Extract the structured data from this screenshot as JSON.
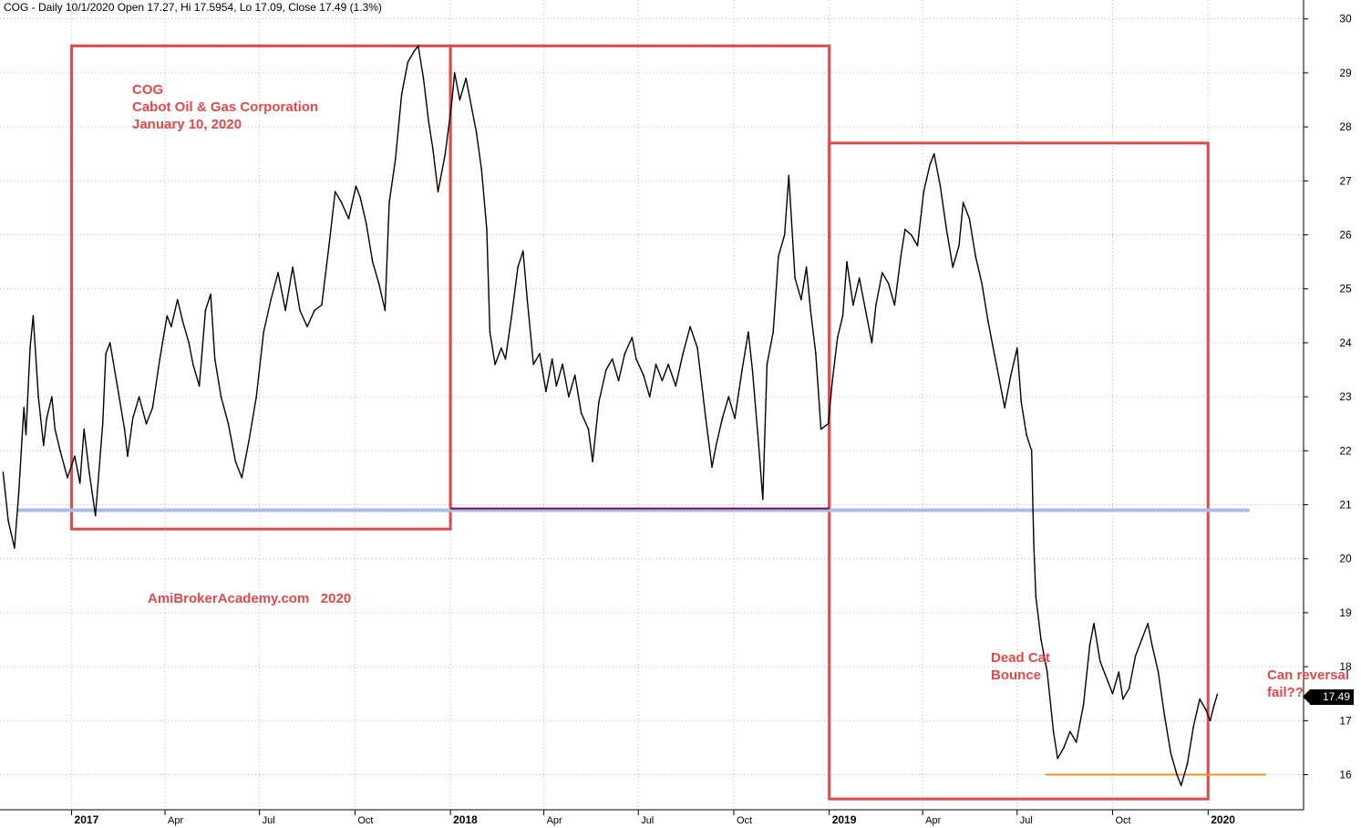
{
  "header": {
    "text": "COG - Daily 10/1/2020 Open 17.27, Hi 17.5954, Lo 17.09, Close 17.49 (1.3%)"
  },
  "annotations": {
    "ticker": "COG",
    "company": "Cabot Oil & Gas Corporation",
    "date": "January 10, 2020",
    "watermark": "AmiBrokerAcademy.com   2020",
    "dead_cat_1": "Dead Cat",
    "dead_cat_2": "Bounce",
    "reversal_1": "Can reversal",
    "reversal_2": "fail??"
  },
  "last_price_label": "17.49",
  "colors": {
    "box": "#e04a4a",
    "support": "#aabde6",
    "support_mid": "#7a0a4a",
    "floor": "#f0922a",
    "price": "#000000",
    "grid": "#b8b8b8"
  },
  "chart_data": {
    "type": "line",
    "series": [
      {
        "values": [
          [
            "2016-10-27",
            21.6
          ],
          [
            "2016-11-01",
            20.7
          ],
          [
            "2016-11-07",
            20.2
          ],
          [
            "2016-11-11",
            21.2
          ],
          [
            "2016-11-16",
            22.8
          ],
          [
            "2016-11-18",
            22.3
          ],
          [
            "2016-11-22",
            23.9
          ],
          [
            "2016-11-25",
            24.5
          ],
          [
            "2016-11-30",
            23.0
          ],
          [
            "2016-12-05",
            22.1
          ],
          [
            "2016-12-08",
            22.6
          ],
          [
            "2016-12-13",
            23.0
          ],
          [
            "2016-12-16",
            22.4
          ],
          [
            "2016-12-21",
            22.0
          ],
          [
            "2016-12-28",
            21.5
          ],
          [
            "2017-01-04",
            21.9
          ],
          [
            "2017-01-09",
            21.4
          ],
          [
            "2017-01-13",
            22.4
          ],
          [
            "2017-01-18",
            21.6
          ],
          [
            "2017-01-24",
            20.8
          ],
          [
            "2017-01-31",
            22.5
          ],
          [
            "2017-02-03",
            23.8
          ],
          [
            "2017-02-07",
            24.0
          ],
          [
            "2017-02-14",
            23.2
          ],
          [
            "2017-02-21",
            22.4
          ],
          [
            "2017-02-24",
            21.9
          ],
          [
            "2017-03-01",
            22.6
          ],
          [
            "2017-03-07",
            23.0
          ],
          [
            "2017-03-14",
            22.5
          ],
          [
            "2017-03-20",
            22.8
          ],
          [
            "2017-03-27",
            23.7
          ],
          [
            "2017-04-03",
            24.5
          ],
          [
            "2017-04-07",
            24.3
          ],
          [
            "2017-04-13",
            24.8
          ],
          [
            "2017-04-18",
            24.4
          ],
          [
            "2017-04-24",
            24.0
          ],
          [
            "2017-04-28",
            23.6
          ],
          [
            "2017-05-04",
            23.2
          ],
          [
            "2017-05-10",
            24.6
          ],
          [
            "2017-05-15",
            24.9
          ],
          [
            "2017-05-19",
            23.7
          ],
          [
            "2017-05-25",
            23.0
          ],
          [
            "2017-06-01",
            22.5
          ],
          [
            "2017-06-08",
            21.8
          ],
          [
            "2017-06-14",
            21.5
          ],
          [
            "2017-06-21",
            22.2
          ],
          [
            "2017-06-28",
            23.0
          ],
          [
            "2017-07-05",
            24.2
          ],
          [
            "2017-07-12",
            24.8
          ],
          [
            "2017-07-19",
            25.3
          ],
          [
            "2017-07-26",
            24.6
          ],
          [
            "2017-08-02",
            25.4
          ],
          [
            "2017-08-09",
            24.6
          ],
          [
            "2017-08-16",
            24.3
          ],
          [
            "2017-08-23",
            24.6
          ],
          [
            "2017-08-30",
            24.7
          ],
          [
            "2017-09-06",
            25.8
          ],
          [
            "2017-09-12",
            26.8
          ],
          [
            "2017-09-18",
            26.6
          ],
          [
            "2017-09-25",
            26.3
          ],
          [
            "2017-10-02",
            26.9
          ],
          [
            "2017-10-06",
            26.7
          ],
          [
            "2017-10-12",
            26.2
          ],
          [
            "2017-10-18",
            25.5
          ],
          [
            "2017-10-24",
            25.1
          ],
          [
            "2017-10-30",
            24.6
          ],
          [
            "2017-11-03",
            26.6
          ],
          [
            "2017-11-09",
            27.4
          ],
          [
            "2017-11-15",
            28.6
          ],
          [
            "2017-11-21",
            29.2
          ],
          [
            "2017-11-27",
            29.4
          ],
          [
            "2017-12-01",
            29.5
          ],
          [
            "2017-12-06",
            28.9
          ],
          [
            "2017-12-11",
            28.1
          ],
          [
            "2017-12-15",
            27.6
          ],
          [
            "2017-12-20",
            26.8
          ],
          [
            "2017-12-27",
            27.5
          ],
          [
            "2018-01-02",
            28.4
          ],
          [
            "2018-01-05",
            29.0
          ],
          [
            "2018-01-10",
            28.5
          ],
          [
            "2018-01-16",
            28.9
          ],
          [
            "2018-01-22",
            28.3
          ],
          [
            "2018-01-26",
            27.9
          ],
          [
            "2018-01-31",
            27.2
          ],
          [
            "2018-02-05",
            26.1
          ],
          [
            "2018-02-08",
            24.2
          ],
          [
            "2018-02-13",
            23.6
          ],
          [
            "2018-02-19",
            23.9
          ],
          [
            "2018-02-23",
            23.7
          ],
          [
            "2018-03-01",
            24.5
          ],
          [
            "2018-03-07",
            25.4
          ],
          [
            "2018-03-12",
            25.7
          ],
          [
            "2018-03-16",
            24.8
          ],
          [
            "2018-03-22",
            23.6
          ],
          [
            "2018-03-28",
            23.8
          ],
          [
            "2018-04-03",
            23.1
          ],
          [
            "2018-04-09",
            23.7
          ],
          [
            "2018-04-13",
            23.2
          ],
          [
            "2018-04-19",
            23.6
          ],
          [
            "2018-04-25",
            23.0
          ],
          [
            "2018-05-01",
            23.4
          ],
          [
            "2018-05-07",
            22.7
          ],
          [
            "2018-05-14",
            22.4
          ],
          [
            "2018-05-18",
            21.8
          ],
          [
            "2018-05-24",
            22.9
          ],
          [
            "2018-05-31",
            23.5
          ],
          [
            "2018-06-06",
            23.7
          ],
          [
            "2018-06-12",
            23.3
          ],
          [
            "2018-06-18",
            23.8
          ],
          [
            "2018-06-25",
            24.1
          ],
          [
            "2018-06-29",
            23.7
          ],
          [
            "2018-07-06",
            23.4
          ],
          [
            "2018-07-12",
            23.0
          ],
          [
            "2018-07-18",
            23.6
          ],
          [
            "2018-07-24",
            23.3
          ],
          [
            "2018-07-30",
            23.6
          ],
          [
            "2018-08-06",
            23.2
          ],
          [
            "2018-08-13",
            23.8
          ],
          [
            "2018-08-20",
            24.3
          ],
          [
            "2018-08-27",
            23.9
          ],
          [
            "2018-09-04",
            22.6
          ],
          [
            "2018-09-10",
            21.7
          ],
          [
            "2018-09-14",
            22.1
          ],
          [
            "2018-09-20",
            22.6
          ],
          [
            "2018-09-26",
            23.0
          ],
          [
            "2018-10-02",
            22.6
          ],
          [
            "2018-10-09",
            23.5
          ],
          [
            "2018-10-15",
            24.2
          ],
          [
            "2018-10-19",
            23.5
          ],
          [
            "2018-10-25",
            22.1
          ],
          [
            "2018-10-29",
            21.1
          ],
          [
            "2018-11-02",
            23.6
          ],
          [
            "2018-11-08",
            24.2
          ],
          [
            "2018-11-13",
            25.6
          ],
          [
            "2018-11-19",
            26.0
          ],
          [
            "2018-11-23",
            27.1
          ],
          [
            "2018-11-29",
            25.2
          ],
          [
            "2018-12-05",
            24.8
          ],
          [
            "2018-12-10",
            25.4
          ],
          [
            "2018-12-14",
            24.6
          ],
          [
            "2018-12-19",
            23.8
          ],
          [
            "2018-12-24",
            22.4
          ],
          [
            "2018-12-31",
            22.5
          ],
          [
            "2019-01-04",
            23.3
          ],
          [
            "2019-01-09",
            24.1
          ],
          [
            "2019-01-14",
            24.5
          ],
          [
            "2019-01-18",
            25.5
          ],
          [
            "2019-01-24",
            24.7
          ],
          [
            "2019-01-30",
            25.2
          ],
          [
            "2019-02-05",
            24.6
          ],
          [
            "2019-02-11",
            24.0
          ],
          [
            "2019-02-15",
            24.7
          ],
          [
            "2019-02-21",
            25.3
          ],
          [
            "2019-02-27",
            25.1
          ],
          [
            "2019-03-05",
            24.7
          ],
          [
            "2019-03-11",
            25.6
          ],
          [
            "2019-03-15",
            26.1
          ],
          [
            "2019-03-21",
            26.0
          ],
          [
            "2019-03-27",
            25.8
          ],
          [
            "2019-04-02",
            26.8
          ],
          [
            "2019-04-08",
            27.3
          ],
          [
            "2019-04-12",
            27.5
          ],
          [
            "2019-04-18",
            26.9
          ],
          [
            "2019-04-24",
            26.1
          ],
          [
            "2019-04-30",
            25.4
          ],
          [
            "2019-05-06",
            25.8
          ],
          [
            "2019-05-10",
            26.6
          ],
          [
            "2019-05-16",
            26.3
          ],
          [
            "2019-05-22",
            25.6
          ],
          [
            "2019-05-28",
            25.1
          ],
          [
            "2019-06-03",
            24.4
          ],
          [
            "2019-06-07",
            24.0
          ],
          [
            "2019-06-13",
            23.4
          ],
          [
            "2019-06-19",
            22.8
          ],
          [
            "2019-06-25",
            23.4
          ],
          [
            "2019-07-01",
            23.9
          ],
          [
            "2019-07-05",
            22.9
          ],
          [
            "2019-07-10",
            22.3
          ],
          [
            "2019-07-15",
            22.0
          ],
          [
            "2019-07-17",
            20.3
          ],
          [
            "2019-07-19",
            19.3
          ],
          [
            "2019-07-24",
            18.5
          ],
          [
            "2019-07-30",
            17.9
          ],
          [
            "2019-08-05",
            16.8
          ],
          [
            "2019-08-09",
            16.3
          ],
          [
            "2019-08-15",
            16.5
          ],
          [
            "2019-08-21",
            16.8
          ],
          [
            "2019-08-27",
            16.6
          ],
          [
            "2019-09-03",
            17.3
          ],
          [
            "2019-09-09",
            18.4
          ],
          [
            "2019-09-13",
            18.8
          ],
          [
            "2019-09-19",
            18.1
          ],
          [
            "2019-09-25",
            17.8
          ],
          [
            "2019-10-01",
            17.5
          ],
          [
            "2019-10-07",
            17.9
          ],
          [
            "2019-10-11",
            17.4
          ],
          [
            "2019-10-17",
            17.6
          ],
          [
            "2019-10-23",
            18.2
          ],
          [
            "2019-10-29",
            18.5
          ],
          [
            "2019-11-04",
            18.8
          ],
          [
            "2019-11-08",
            18.4
          ],
          [
            "2019-11-14",
            17.9
          ],
          [
            "2019-11-20",
            17.1
          ],
          [
            "2019-11-26",
            16.4
          ],
          [
            "2019-12-02",
            16.0
          ],
          [
            "2019-12-06",
            15.8
          ],
          [
            "2019-12-12",
            16.2
          ],
          [
            "2019-12-18",
            16.9
          ],
          [
            "2019-12-24",
            17.4
          ],
          [
            "2019-12-30",
            17.2
          ],
          [
            "2020-01-03",
            17.0
          ],
          [
            "2020-01-07",
            17.3
          ],
          [
            "2020-01-10",
            17.49
          ]
        ]
      }
    ],
    "x_ticks": [
      {
        "date": "2017-01-01",
        "label": "2017",
        "bold": true
      },
      {
        "date": "2017-04-01",
        "label": "Apr"
      },
      {
        "date": "2017-07-01",
        "label": "Jul"
      },
      {
        "date": "2017-10-01",
        "label": "Oct"
      },
      {
        "date": "2018-01-01",
        "label": "2018",
        "bold": true
      },
      {
        "date": "2018-04-01",
        "label": "Apr"
      },
      {
        "date": "2018-07-01",
        "label": "Jul"
      },
      {
        "date": "2018-10-01",
        "label": "Oct"
      },
      {
        "date": "2019-01-01",
        "label": "2019",
        "bold": true
      },
      {
        "date": "2019-04-01",
        "label": "Apr"
      },
      {
        "date": "2019-07-01",
        "label": "Jul"
      },
      {
        "date": "2019-10-01",
        "label": "Oct"
      },
      {
        "date": "2020-01-01",
        "label": "2020",
        "bold": true
      }
    ],
    "y_ticks": [
      16,
      17,
      18,
      19,
      20,
      21,
      22,
      23,
      24,
      25,
      26,
      27,
      28,
      29,
      30
    ],
    "xlim": [
      "2016-10-24",
      "2020-04-02"
    ],
    "ylim": [
      15.35,
      30.35
    ],
    "grid": true,
    "boxes": [
      {
        "x0": "2017-01-01",
        "x1": "2018-01-01",
        "y0": 20.55,
        "y1": 29.5
      },
      {
        "x0": "2018-01-01",
        "x1": "2019-01-01",
        "y0": 20.9,
        "y1": 29.5
      },
      {
        "x0": "2019-01-01",
        "x1": "2020-01-01",
        "y0": 15.55,
        "y1": 27.7
      }
    ],
    "lines": [
      {
        "name": "support",
        "x0": "2016-11-10",
        "x1": "2020-02-10",
        "y": 20.9
      },
      {
        "name": "support_mid",
        "x0": "2018-01-01",
        "x1": "2019-01-01",
        "y": 20.93
      },
      {
        "name": "floor",
        "x0": "2019-07-28",
        "x1": "2020-02-26",
        "y": 16.0
      }
    ]
  }
}
